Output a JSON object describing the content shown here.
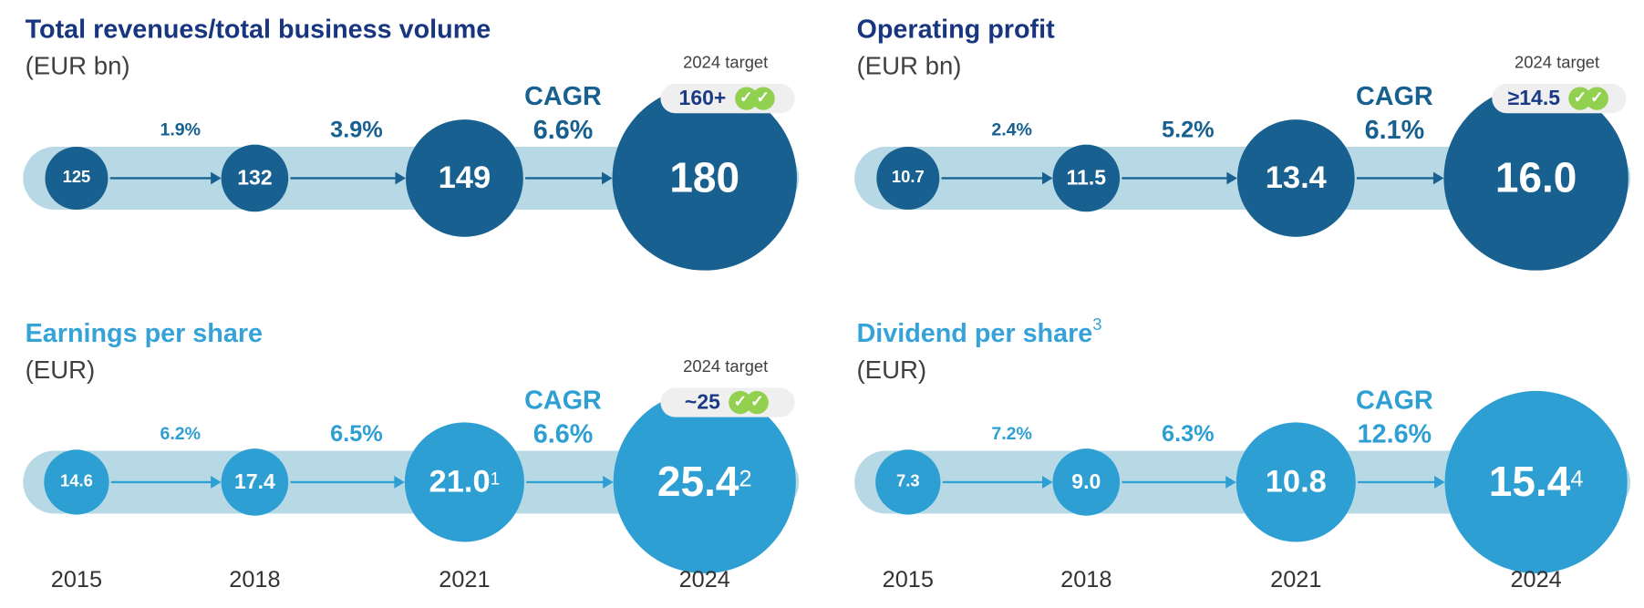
{
  "colors": {
    "dark": "#17608f",
    "light": "#2e9fd3",
    "band": "#b7d9e6",
    "title_dark": "#17367f",
    "title_light": "#35a3d8",
    "check": "#92d050"
  },
  "panels": [
    {
      "title": "Total revenues/total business volume",
      "title_sup": "",
      "unit": "(EUR bn)",
      "theme": "dark",
      "values": [
        {
          "v": "125",
          "sup": ""
        },
        {
          "v": "132",
          "sup": ""
        },
        {
          "v": "149",
          "sup": ""
        },
        {
          "v": "180",
          "sup": ""
        }
      ],
      "growth": [
        "1.9%",
        "3.9%"
      ],
      "cagr_label": "CAGR",
      "cagr": "6.6%",
      "target_label": "2024 target",
      "target": "160+",
      "check_icon": "double-check-icon",
      "years": []
    },
    {
      "title": "Operating profit",
      "title_sup": "",
      "unit": "(EUR bn)",
      "theme": "dark",
      "values": [
        {
          "v": "10.7",
          "sup": ""
        },
        {
          "v": "11.5",
          "sup": ""
        },
        {
          "v": "13.4",
          "sup": ""
        },
        {
          "v": "16.0",
          "sup": ""
        }
      ],
      "growth": [
        "2.4%",
        "5.2%"
      ],
      "cagr_label": "CAGR",
      "cagr": "6.1%",
      "target_label": "2024 target",
      "target": "≥14.5",
      "check_icon": "double-check-icon",
      "years": []
    },
    {
      "title": "Earnings per share",
      "title_sup": "",
      "unit": "(EUR)",
      "theme": "light",
      "values": [
        {
          "v": "14.6",
          "sup": ""
        },
        {
          "v": "17.4",
          "sup": ""
        },
        {
          "v": "21.0",
          "sup": "1"
        },
        {
          "v": "25.4",
          "sup": "2"
        }
      ],
      "growth": [
        "6.2%",
        "6.5%"
      ],
      "cagr_label": "CAGR",
      "cagr": "6.6%",
      "target_label": "2024 target",
      "target": "~25",
      "check_icon": "double-check-icon",
      "years": [
        "2015",
        "2018",
        "2021",
        "2024"
      ]
    },
    {
      "title": "Dividend per share",
      "title_sup": "3",
      "unit": "(EUR)",
      "theme": "light",
      "values": [
        {
          "v": "7.3",
          "sup": ""
        },
        {
          "v": "9.0",
          "sup": ""
        },
        {
          "v": "10.8",
          "sup": ""
        },
        {
          "v": "15.4",
          "sup": "4"
        }
      ],
      "growth": [
        "7.2%",
        "6.3%"
      ],
      "cagr_label": "CAGR",
      "cagr": "12.6%",
      "target_label": "",
      "target": "",
      "check_icon": "",
      "years": [
        "2015",
        "2018",
        "2021",
        "2024"
      ]
    }
  ],
  "chart_data": [
    {
      "type": "bubble-timeline",
      "title": "Total revenues/total business volume",
      "unit": "EUR bn",
      "categories": [
        "2015",
        "2018",
        "2021",
        "2024"
      ],
      "values": [
        125,
        132,
        149,
        180
      ],
      "growth": [
        "1.9%",
        "3.9%"
      ],
      "cagr": "6.6%",
      "target_2024": "160+"
    },
    {
      "type": "bubble-timeline",
      "title": "Operating profit",
      "unit": "EUR bn",
      "categories": [
        "2015",
        "2018",
        "2021",
        "2024"
      ],
      "values": [
        10.7,
        11.5,
        13.4,
        16.0
      ],
      "growth": [
        "2.4%",
        "5.2%"
      ],
      "cagr": "6.1%",
      "target_2024": "≥14.5"
    },
    {
      "type": "bubble-timeline",
      "title": "Earnings per share",
      "unit": "EUR",
      "categories": [
        "2015",
        "2018",
        "2021",
        "2024"
      ],
      "values": [
        14.6,
        17.4,
        21.0,
        25.4
      ],
      "growth": [
        "6.2%",
        "6.5%"
      ],
      "cagr": "6.6%",
      "target_2024": "~25"
    },
    {
      "type": "bubble-timeline",
      "title": "Dividend per share",
      "unit": "EUR",
      "categories": [
        "2015",
        "2018",
        "2021",
        "2024"
      ],
      "values": [
        7.3,
        9.0,
        10.8,
        15.4
      ],
      "growth": [
        "7.2%",
        "6.3%"
      ],
      "cagr": "12.6%"
    }
  ]
}
